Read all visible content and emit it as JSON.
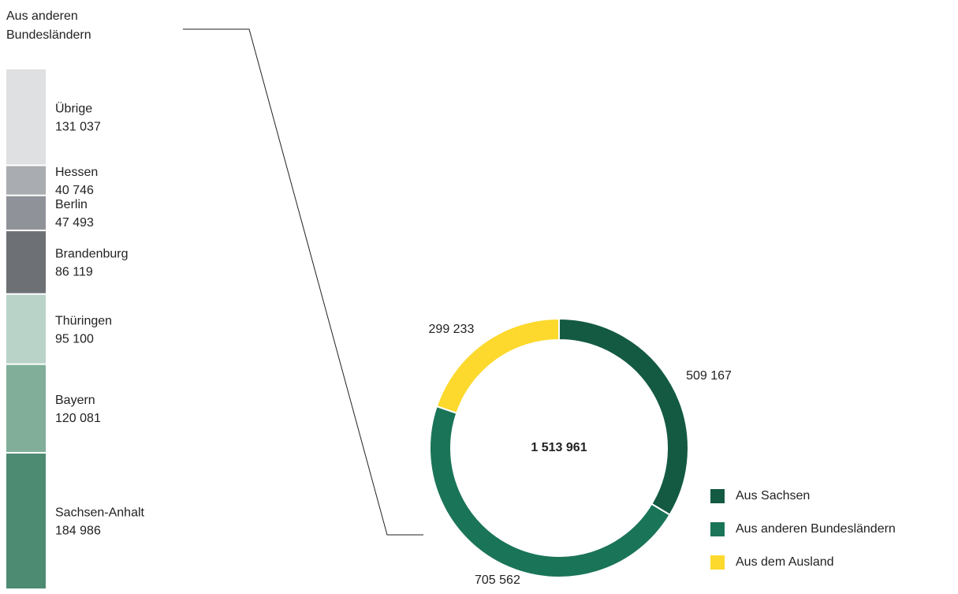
{
  "chart_data": [
    {
      "type": "donut",
      "categories": [
        "Aus Sachsen",
        "Aus anderen Bundesländern",
        "Aus dem Ausland"
      ],
      "values": [
        509167,
        705562,
        299233
      ],
      "value_labels": [
        "509 167",
        "705 562",
        "299 233"
      ],
      "colors": [
        "#145a43",
        "#1a7458",
        "#fcd92c"
      ],
      "total": {
        "value": 1513961,
        "label": "1 513 961"
      },
      "legend": "bottom-right"
    },
    {
      "type": "bar",
      "stacked": true,
      "title": [
        "Aus anderen",
        "Bundesländern"
      ],
      "categories": [
        "Sachsen-Anhalt",
        "Bayern",
        "Thüringen",
        "Brandenburg",
        "Berlin",
        "Hessen",
        "Übrige"
      ],
      "values": [
        184986,
        120081,
        95100,
        86119,
        47493,
        40746,
        131037
      ],
      "value_labels": [
        "184 986",
        "120 081",
        "95 100",
        "86 119",
        "47 493",
        "40 746",
        "131 037"
      ],
      "colors": [
        "#4e8b73",
        "#80ae99",
        "#b9d3c8",
        "#6d7075",
        "#8f9298",
        "#a9acb0",
        "#dfe0e1"
      ]
    }
  ]
}
